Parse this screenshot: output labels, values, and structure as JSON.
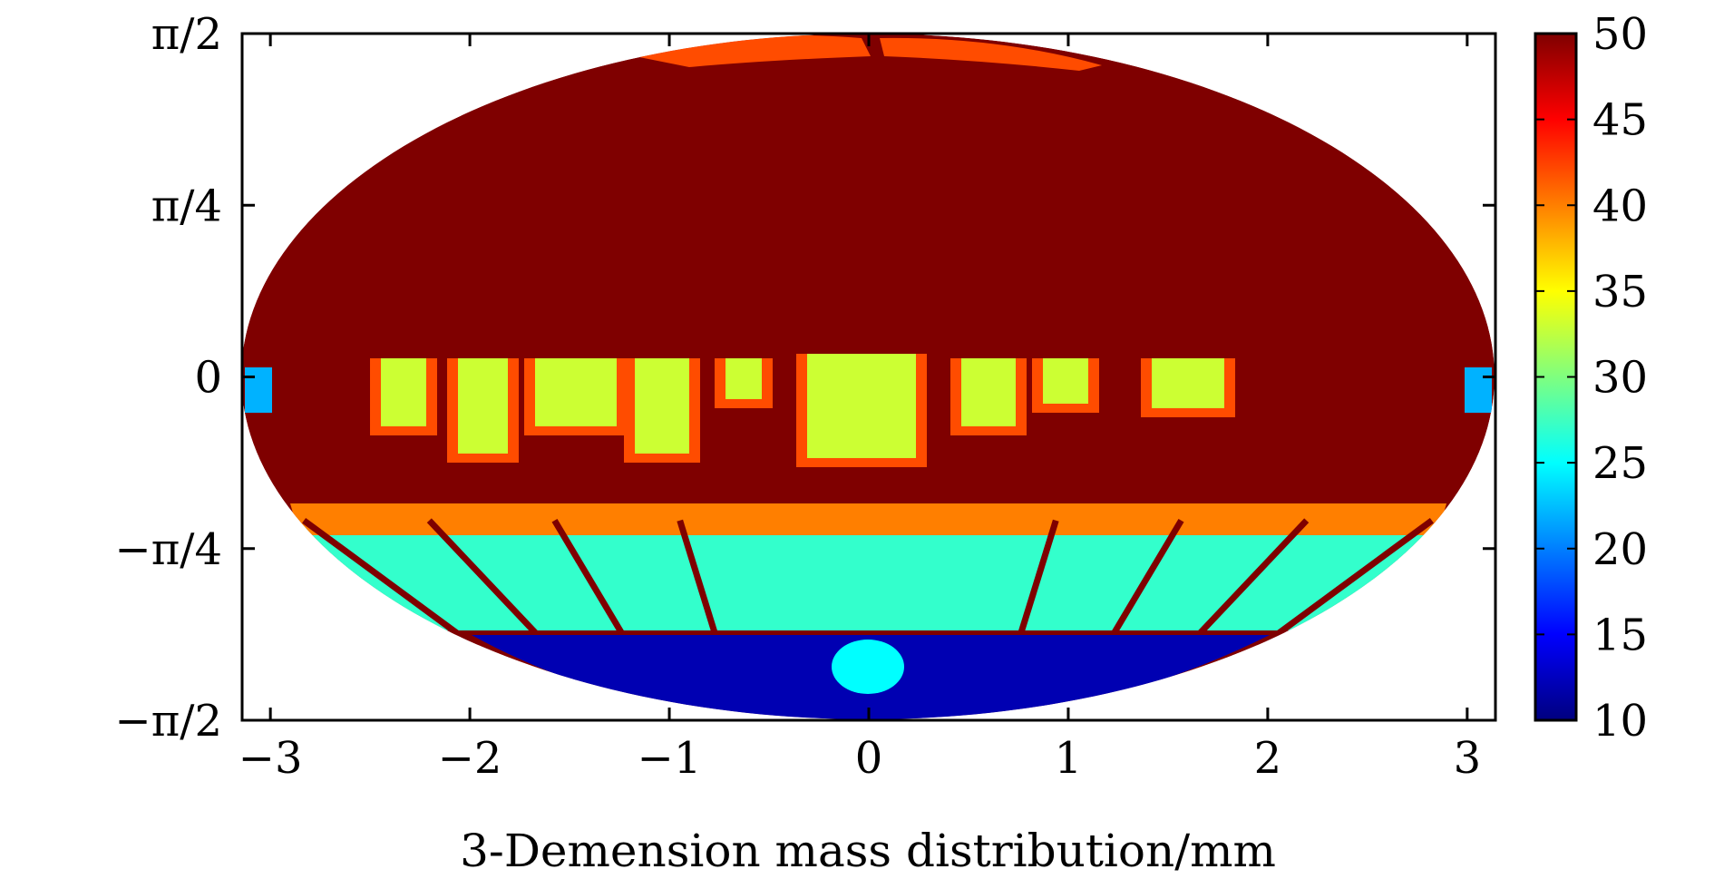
{
  "chart_data": {
    "type": "heatmap",
    "projection": "mollweide",
    "title": "",
    "xlabel": "3-Demension mass distribution/mm",
    "ylabel": "",
    "xlim": [
      -3.1416,
      3.1416
    ],
    "ylim": [
      -1.5708,
      1.5708
    ],
    "x_ticks": [
      {
        "value": -3,
        "label": "−3"
      },
      {
        "value": -2,
        "label": "−2"
      },
      {
        "value": -1,
        "label": "−1"
      },
      {
        "value": 0,
        "label": "0"
      },
      {
        "value": 1,
        "label": "1"
      },
      {
        "value": 2,
        "label": "2"
      },
      {
        "value": 3,
        "label": "3"
      }
    ],
    "y_ticks": [
      {
        "value": 1.5708,
        "label": "π/2"
      },
      {
        "value": 0.7854,
        "label": "π/4"
      },
      {
        "value": 0,
        "label": "0"
      },
      {
        "value": -0.7854,
        "label": "−π/4"
      },
      {
        "value": -1.5708,
        "label": "−π/2"
      }
    ],
    "colorbar": {
      "range": [
        10,
        50
      ],
      "ticks": [
        10,
        15,
        20,
        25,
        30,
        35,
        40,
        45,
        50
      ],
      "colormap": "jet",
      "stops": [
        "#00007f",
        "#0000ff",
        "#007fff",
        "#00ffff",
        "#7fff7f",
        "#ffff00",
        "#ff7f00",
        "#ff0000",
        "#7f0000"
      ]
    },
    "regions": [
      {
        "name": "northern-hemisphere",
        "value": 50,
        "note": "almost entirely saturated"
      },
      {
        "name": "north-pole-cap",
        "value": 42
      },
      {
        "name": "equatorial-band",
        "value": 33
      },
      {
        "name": "equatorial-edge",
        "value": 22
      },
      {
        "name": "southern-mid-latitudes",
        "value": 27
      },
      {
        "name": "southern-radial-ridges",
        "value": 50
      },
      {
        "name": "south-polar-cap",
        "value": 12
      }
    ]
  }
}
